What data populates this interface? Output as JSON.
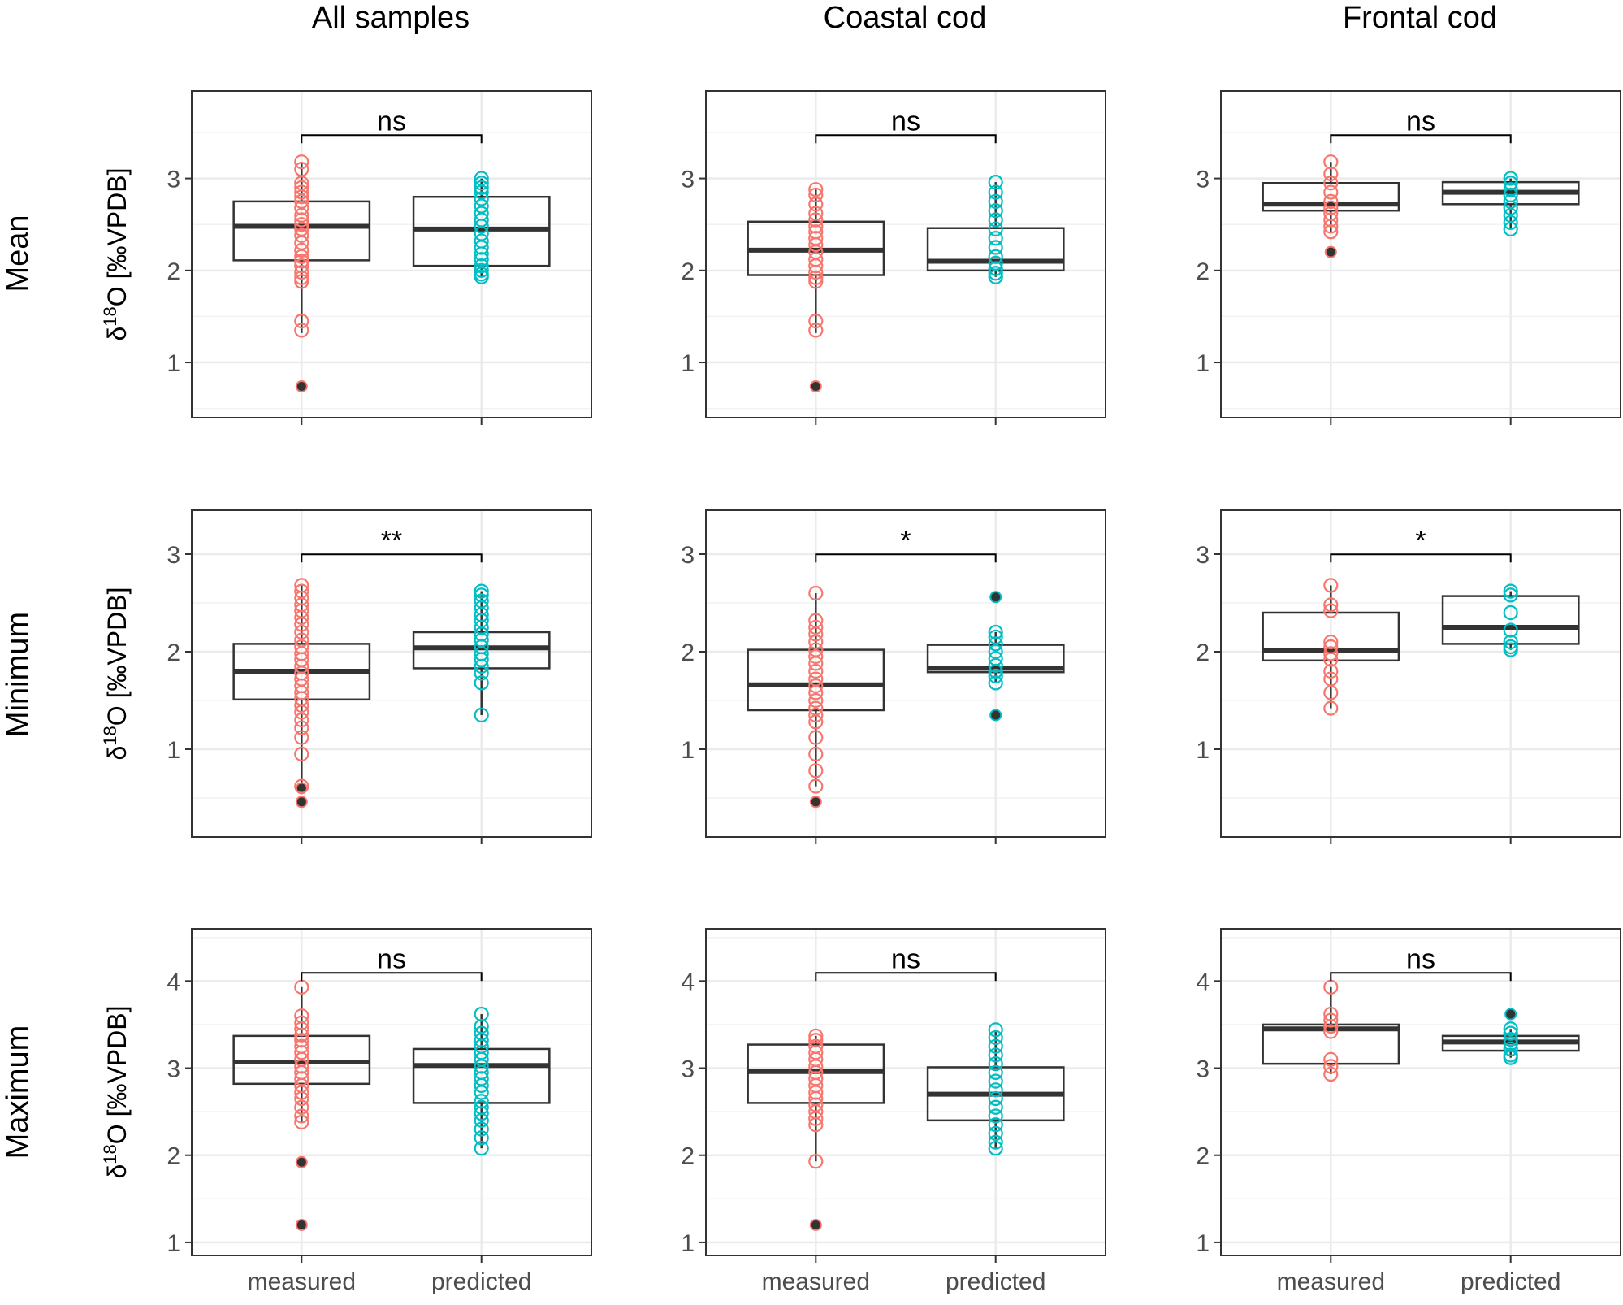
{
  "figure": {
    "columns": [
      "All samples",
      "Coastal cod",
      "Frontal cod"
    ],
    "rows": [
      "Mean",
      "Minimum",
      "Maximum"
    ],
    "y_axis_label": {
      "delta": "δ",
      "superscript": "18",
      "rest": "O [‰VPDB]"
    },
    "x_categories": [
      "measured",
      "predicted"
    ]
  },
  "colors": {
    "measured": "#F8766D",
    "predicted": "#00BFC4",
    "box": "#333333",
    "outlier": "#333333",
    "grid_major": "#ebebeb",
    "grid_minor": "#f2f2f2",
    "panel_border": "#333333"
  },
  "chart_data": [
    {
      "type": "box",
      "row": "Mean",
      "column": "All samples",
      "ylim": [
        0.4,
        3.95
      ],
      "yticks": [
        1,
        2,
        3
      ],
      "significance": "ns",
      "measured": {
        "q1": 2.11,
        "median": 2.48,
        "q3": 2.75,
        "whisker_low": 1.32,
        "whisker_high": 3.18,
        "outliers": [
          0.74
        ],
        "points": [
          3.18,
          3.1,
          2.95,
          2.9,
          2.85,
          2.8,
          2.75,
          2.68,
          2.6,
          2.55,
          2.5,
          2.45,
          2.38,
          2.3,
          2.22,
          2.15,
          2.1,
          2.05,
          1.98,
          1.92,
          1.88,
          1.45,
          1.35
        ]
      },
      "predicted": {
        "q1": 2.05,
        "median": 2.45,
        "q3": 2.8,
        "whisker_low": 1.93,
        "whisker_high": 3.0,
        "outliers": [],
        "points": [
          3.0,
          2.95,
          2.9,
          2.85,
          2.78,
          2.7,
          2.62,
          2.55,
          2.48,
          2.4,
          2.32,
          2.25,
          2.18,
          2.12,
          2.05,
          2.0,
          1.96,
          1.93
        ]
      }
    },
    {
      "type": "box",
      "row": "Mean",
      "column": "Coastal cod",
      "ylim": [
        0.4,
        3.95
      ],
      "yticks": [
        1,
        2,
        3
      ],
      "significance": "ns",
      "measured": {
        "q1": 1.95,
        "median": 2.22,
        "q3": 2.53,
        "whisker_low": 1.32,
        "whisker_high": 2.88,
        "outliers": [
          0.74
        ],
        "points": [
          2.88,
          2.82,
          2.72,
          2.62,
          2.55,
          2.48,
          2.42,
          2.35,
          2.28,
          2.2,
          2.12,
          2.05,
          1.98,
          1.92,
          1.88,
          1.45,
          1.35
        ]
      },
      "predicted": {
        "q1": 2.0,
        "median": 2.1,
        "q3": 2.46,
        "whisker_low": 1.93,
        "whisker_high": 2.96,
        "outliers": [],
        "points": [
          2.96,
          2.85,
          2.75,
          2.65,
          2.55,
          2.45,
          2.35,
          2.25,
          2.15,
          2.08,
          2.02,
          1.97,
          1.93
        ]
      }
    },
    {
      "type": "box",
      "row": "Mean",
      "column": "Frontal cod",
      "ylim": [
        0.4,
        3.95
      ],
      "yticks": [
        1,
        2,
        3
      ],
      "significance": "ns",
      "measured": {
        "q1": 2.65,
        "median": 2.72,
        "q3": 2.95,
        "whisker_low": 2.42,
        "whisker_high": 3.18,
        "outliers": [
          2.2
        ],
        "points": [
          3.18,
          3.05,
          2.95,
          2.85,
          2.75,
          2.68,
          2.62,
          2.55,
          2.48,
          2.42
        ]
      },
      "predicted": {
        "q1": 2.72,
        "median": 2.85,
        "q3": 2.96,
        "whisker_low": 2.45,
        "whisker_high": 3.0,
        "outliers": [],
        "points": [
          3.0,
          2.95,
          2.88,
          2.82,
          2.75,
          2.68,
          2.6,
          2.52,
          2.45
        ]
      }
    },
    {
      "type": "box",
      "row": "Minimum",
      "column": "All samples",
      "ylim": [
        0.1,
        3.45
      ],
      "yticks": [
        1,
        2,
        3
      ],
      "significance": "**",
      "measured": {
        "q1": 1.51,
        "median": 1.8,
        "q3": 2.08,
        "whisker_low": 0.62,
        "whisker_high": 2.68,
        "outliers": [
          0.46,
          0.6
        ],
        "points": [
          2.68,
          2.62,
          2.55,
          2.48,
          2.42,
          2.35,
          2.28,
          2.2,
          2.12,
          2.05,
          1.98,
          1.92,
          1.85,
          1.78,
          1.72,
          1.65,
          1.58,
          1.52,
          1.45,
          1.38,
          1.3,
          1.22,
          1.12,
          0.95,
          0.62
        ]
      },
      "predicted": {
        "q1": 1.83,
        "median": 2.04,
        "q3": 2.2,
        "whisker_low": 1.35,
        "whisker_high": 2.62,
        "outliers": [],
        "points": [
          2.62,
          2.58,
          2.52,
          2.45,
          2.38,
          2.32,
          2.25,
          2.18,
          2.12,
          2.05,
          1.98,
          1.92,
          1.85,
          1.78,
          1.68,
          1.35
        ]
      }
    },
    {
      "type": "box",
      "row": "Minimum",
      "column": "Coastal cod",
      "ylim": [
        0.1,
        3.45
      ],
      "yticks": [
        1,
        2,
        3
      ],
      "significance": "*",
      "measured": {
        "q1": 1.4,
        "median": 1.66,
        "q3": 2.02,
        "whisker_low": 0.62,
        "whisker_high": 2.6,
        "outliers": [
          0.46
        ],
        "points": [
          2.6,
          2.32,
          2.25,
          2.18,
          2.1,
          2.02,
          1.95,
          1.88,
          1.8,
          1.72,
          1.65,
          1.58,
          1.5,
          1.42,
          1.35,
          1.28,
          1.12,
          0.95,
          0.78,
          0.62
        ]
      },
      "predicted": {
        "q1": 1.79,
        "median": 1.83,
        "q3": 2.07,
        "whisker_low": 1.68,
        "whisker_high": 2.2,
        "outliers": [
          1.35,
          2.56
        ],
        "points": [
          2.2,
          2.15,
          2.08,
          2.0,
          1.93,
          1.86,
          1.8,
          1.75,
          1.68
        ]
      }
    },
    {
      "type": "box",
      "row": "Minimum",
      "column": "Frontal cod",
      "ylim": [
        0.1,
        3.45
      ],
      "yticks": [
        1,
        2,
        3
      ],
      "significance": "*",
      "measured": {
        "q1": 1.91,
        "median": 2.01,
        "q3": 2.4,
        "whisker_low": 1.42,
        "whisker_high": 2.68,
        "outliers": [],
        "points": [
          2.68,
          2.48,
          2.42,
          2.1,
          2.05,
          1.98,
          1.92,
          1.8,
          1.72,
          1.58,
          1.42
        ]
      },
      "predicted": {
        "q1": 2.08,
        "median": 2.25,
        "q3": 2.57,
        "whisker_low": 2.02,
        "whisker_high": 2.62,
        "outliers": [],
        "points": [
          2.62,
          2.58,
          2.4,
          2.22,
          2.1,
          2.05,
          2.02
        ]
      }
    },
    {
      "type": "box",
      "row": "Maximum",
      "column": "All samples",
      "ylim": [
        0.85,
        4.6
      ],
      "yticks": [
        1,
        2,
        3,
        4
      ],
      "significance": "ns",
      "measured": {
        "q1": 2.82,
        "median": 3.07,
        "q3": 3.37,
        "whisker_low": 2.38,
        "whisker_high": 3.93,
        "outliers": [
          1.2,
          1.92
        ],
        "points": [
          3.93,
          3.6,
          3.52,
          3.45,
          3.38,
          3.32,
          3.25,
          3.18,
          3.1,
          3.02,
          2.95,
          2.88,
          2.8,
          2.72,
          2.65,
          2.55,
          2.45,
          2.38
        ]
      },
      "predicted": {
        "q1": 2.6,
        "median": 3.03,
        "q3": 3.22,
        "whisker_low": 2.08,
        "whisker_high": 3.62,
        "outliers": [],
        "points": [
          3.62,
          3.48,
          3.4,
          3.32,
          3.25,
          3.18,
          3.1,
          3.02,
          2.95,
          2.88,
          2.8,
          2.72,
          2.62,
          2.55,
          2.48,
          2.4,
          2.3,
          2.2,
          2.08
        ]
      }
    },
    {
      "type": "box",
      "row": "Maximum",
      "column": "Coastal cod",
      "ylim": [
        0.85,
        4.6
      ],
      "yticks": [
        1,
        2,
        3,
        4
      ],
      "significance": "ns",
      "measured": {
        "q1": 2.6,
        "median": 2.96,
        "q3": 3.27,
        "whisker_low": 1.93,
        "whisker_high": 3.37,
        "outliers": [
          1.2
        ],
        "points": [
          3.37,
          3.32,
          3.25,
          3.18,
          3.1,
          3.02,
          2.95,
          2.88,
          2.8,
          2.72,
          2.65,
          2.58,
          2.5,
          2.42,
          2.35,
          1.93
        ]
      },
      "predicted": {
        "q1": 2.4,
        "median": 2.7,
        "q3": 3.01,
        "whisker_low": 2.08,
        "whisker_high": 3.44,
        "outliers": [],
        "points": [
          3.44,
          3.35,
          3.25,
          3.15,
          3.05,
          2.95,
          2.85,
          2.75,
          2.65,
          2.55,
          2.45,
          2.35,
          2.25,
          2.15,
          2.08
        ]
      }
    },
    {
      "type": "box",
      "row": "Maximum",
      "column": "Frontal cod",
      "ylim": [
        0.85,
        4.6
      ],
      "yticks": [
        1,
        2,
        3,
        4
      ],
      "significance": "ns",
      "measured": {
        "q1": 3.05,
        "median": 3.45,
        "q3": 3.5,
        "whisker_low": 2.93,
        "whisker_high": 3.93,
        "outliers": [],
        "points": [
          3.93,
          3.62,
          3.55,
          3.48,
          3.42,
          3.1,
          3.02,
          2.93
        ]
      },
      "predicted": {
        "q1": 3.2,
        "median": 3.3,
        "q3": 3.37,
        "whisker_low": 3.12,
        "whisker_high": 3.45,
        "outliers": [
          3.62
        ],
        "points": [
          3.45,
          3.4,
          3.33,
          3.28,
          3.22,
          3.15,
          3.12
        ]
      }
    }
  ]
}
